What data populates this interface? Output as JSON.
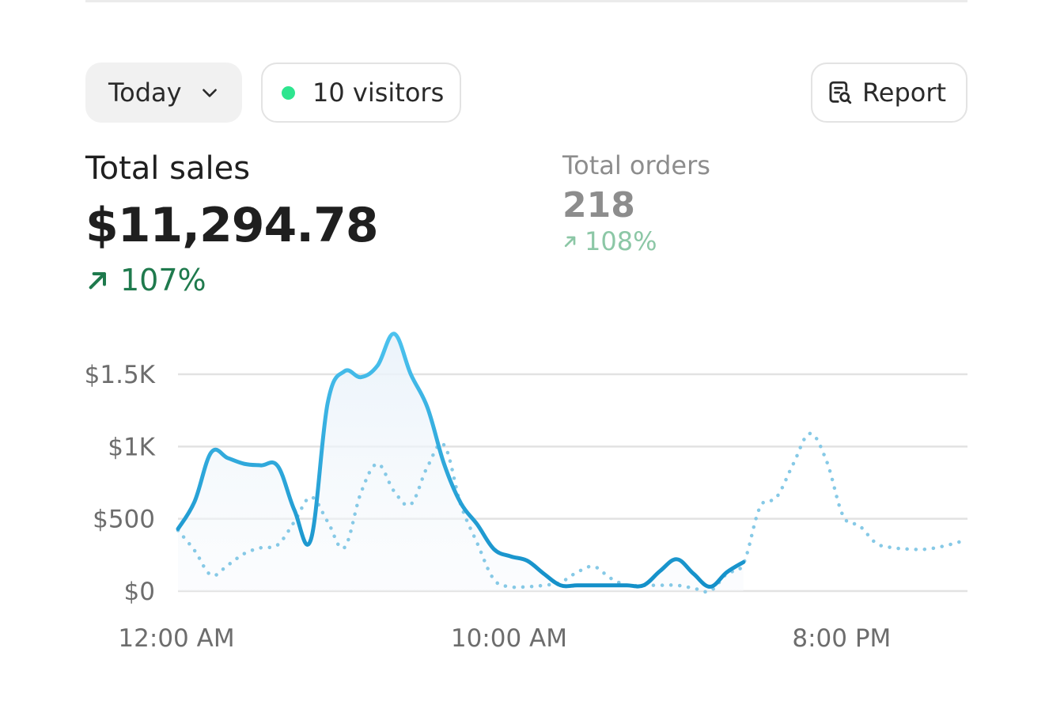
{
  "toolbar": {
    "date_label": "Today",
    "visitors_label": "10 visitors",
    "report_label": "Report"
  },
  "metrics": {
    "total_sales": {
      "label": "Total sales",
      "value": "$11,294.78",
      "change": "107%"
    },
    "total_orders": {
      "label": "Total orders",
      "value": "218",
      "change": "108%"
    }
  },
  "colors": {
    "primary_line": "#1a9fd6",
    "comparison_line": "#86c9e6",
    "positive_change": "#1f7a4d",
    "positive_change_muted": "#8cc7a6",
    "live_dot": "#2ee58f"
  },
  "icons": {
    "date_dropdown": "chevron-down-icon",
    "report": "report-search-icon",
    "change": "arrow-up-right-icon"
  },
  "chart_data": {
    "type": "line",
    "y_ticks": [
      "$0",
      "$500",
      "$1K",
      "$1.5K"
    ],
    "y_tick_values": [
      0,
      500,
      1000,
      1500
    ],
    "x_ticks": [
      "12:00 AM",
      "10:00 AM",
      "8:00 PM"
    ],
    "x_tick_hours": [
      0,
      10,
      20
    ],
    "ylim": [
      0,
      1800
    ],
    "xlim": [
      0,
      23.5
    ],
    "grid": true,
    "series": [
      {
        "style": "solid",
        "points": [
          [
            0,
            430
          ],
          [
            0.5,
            620
          ],
          [
            1,
            960
          ],
          [
            1.5,
            920
          ],
          [
            2,
            880
          ],
          [
            2.5,
            870
          ],
          [
            3,
            865
          ],
          [
            3.5,
            560
          ],
          [
            4,
            360
          ],
          [
            4.5,
            1300
          ],
          [
            5,
            1520
          ],
          [
            5.5,
            1480
          ],
          [
            6,
            1560
          ],
          [
            6.5,
            1780
          ],
          [
            7,
            1500
          ],
          [
            7.5,
            1270
          ],
          [
            8,
            880
          ],
          [
            8.5,
            610
          ],
          [
            9,
            460
          ],
          [
            9.5,
            290
          ],
          [
            10,
            240
          ],
          [
            10.5,
            210
          ],
          [
            11,
            120
          ],
          [
            11.5,
            40
          ],
          [
            12,
            40
          ],
          [
            12.5,
            40
          ],
          [
            13,
            40
          ],
          [
            13.5,
            40
          ],
          [
            14,
            40
          ],
          [
            14.5,
            140
          ],
          [
            15,
            220
          ],
          [
            15.5,
            120
          ],
          [
            16,
            30
          ],
          [
            16.5,
            130
          ],
          [
            17,
            200
          ]
        ]
      },
      {
        "style": "dotted",
        "points": [
          [
            0,
            420
          ],
          [
            0.5,
            280
          ],
          [
            1,
            110
          ],
          [
            1.5,
            180
          ],
          [
            2,
            260
          ],
          [
            2.5,
            300
          ],
          [
            3,
            320
          ],
          [
            3.5,
            480
          ],
          [
            4,
            650
          ],
          [
            4.5,
            480
          ],
          [
            5,
            300
          ],
          [
            5.5,
            680
          ],
          [
            6,
            880
          ],
          [
            6.5,
            690
          ],
          [
            7,
            600
          ],
          [
            7.5,
            860
          ],
          [
            8,
            1010
          ],
          [
            8.5,
            600
          ],
          [
            9,
            330
          ],
          [
            9.5,
            80
          ],
          [
            10,
            30
          ],
          [
            10.5,
            30
          ],
          [
            11,
            40
          ],
          [
            11.5,
            60
          ],
          [
            12,
            130
          ],
          [
            12.5,
            170
          ],
          [
            13,
            90
          ],
          [
            13.5,
            40
          ],
          [
            14,
            40
          ],
          [
            14.5,
            40
          ],
          [
            15,
            40
          ],
          [
            15.5,
            20
          ],
          [
            16,
            0
          ],
          [
            16.5,
            120
          ],
          [
            17,
            190
          ],
          [
            17.5,
            580
          ],
          [
            18,
            650
          ],
          [
            18.5,
            880
          ],
          [
            19,
            1090
          ],
          [
            19.5,
            900
          ],
          [
            20,
            520
          ],
          [
            20.5,
            450
          ],
          [
            21,
            330
          ],
          [
            21.5,
            300
          ],
          [
            22,
            290
          ],
          [
            22.5,
            290
          ],
          [
            23,
            310
          ],
          [
            23.5,
            340
          ]
        ]
      }
    ]
  }
}
